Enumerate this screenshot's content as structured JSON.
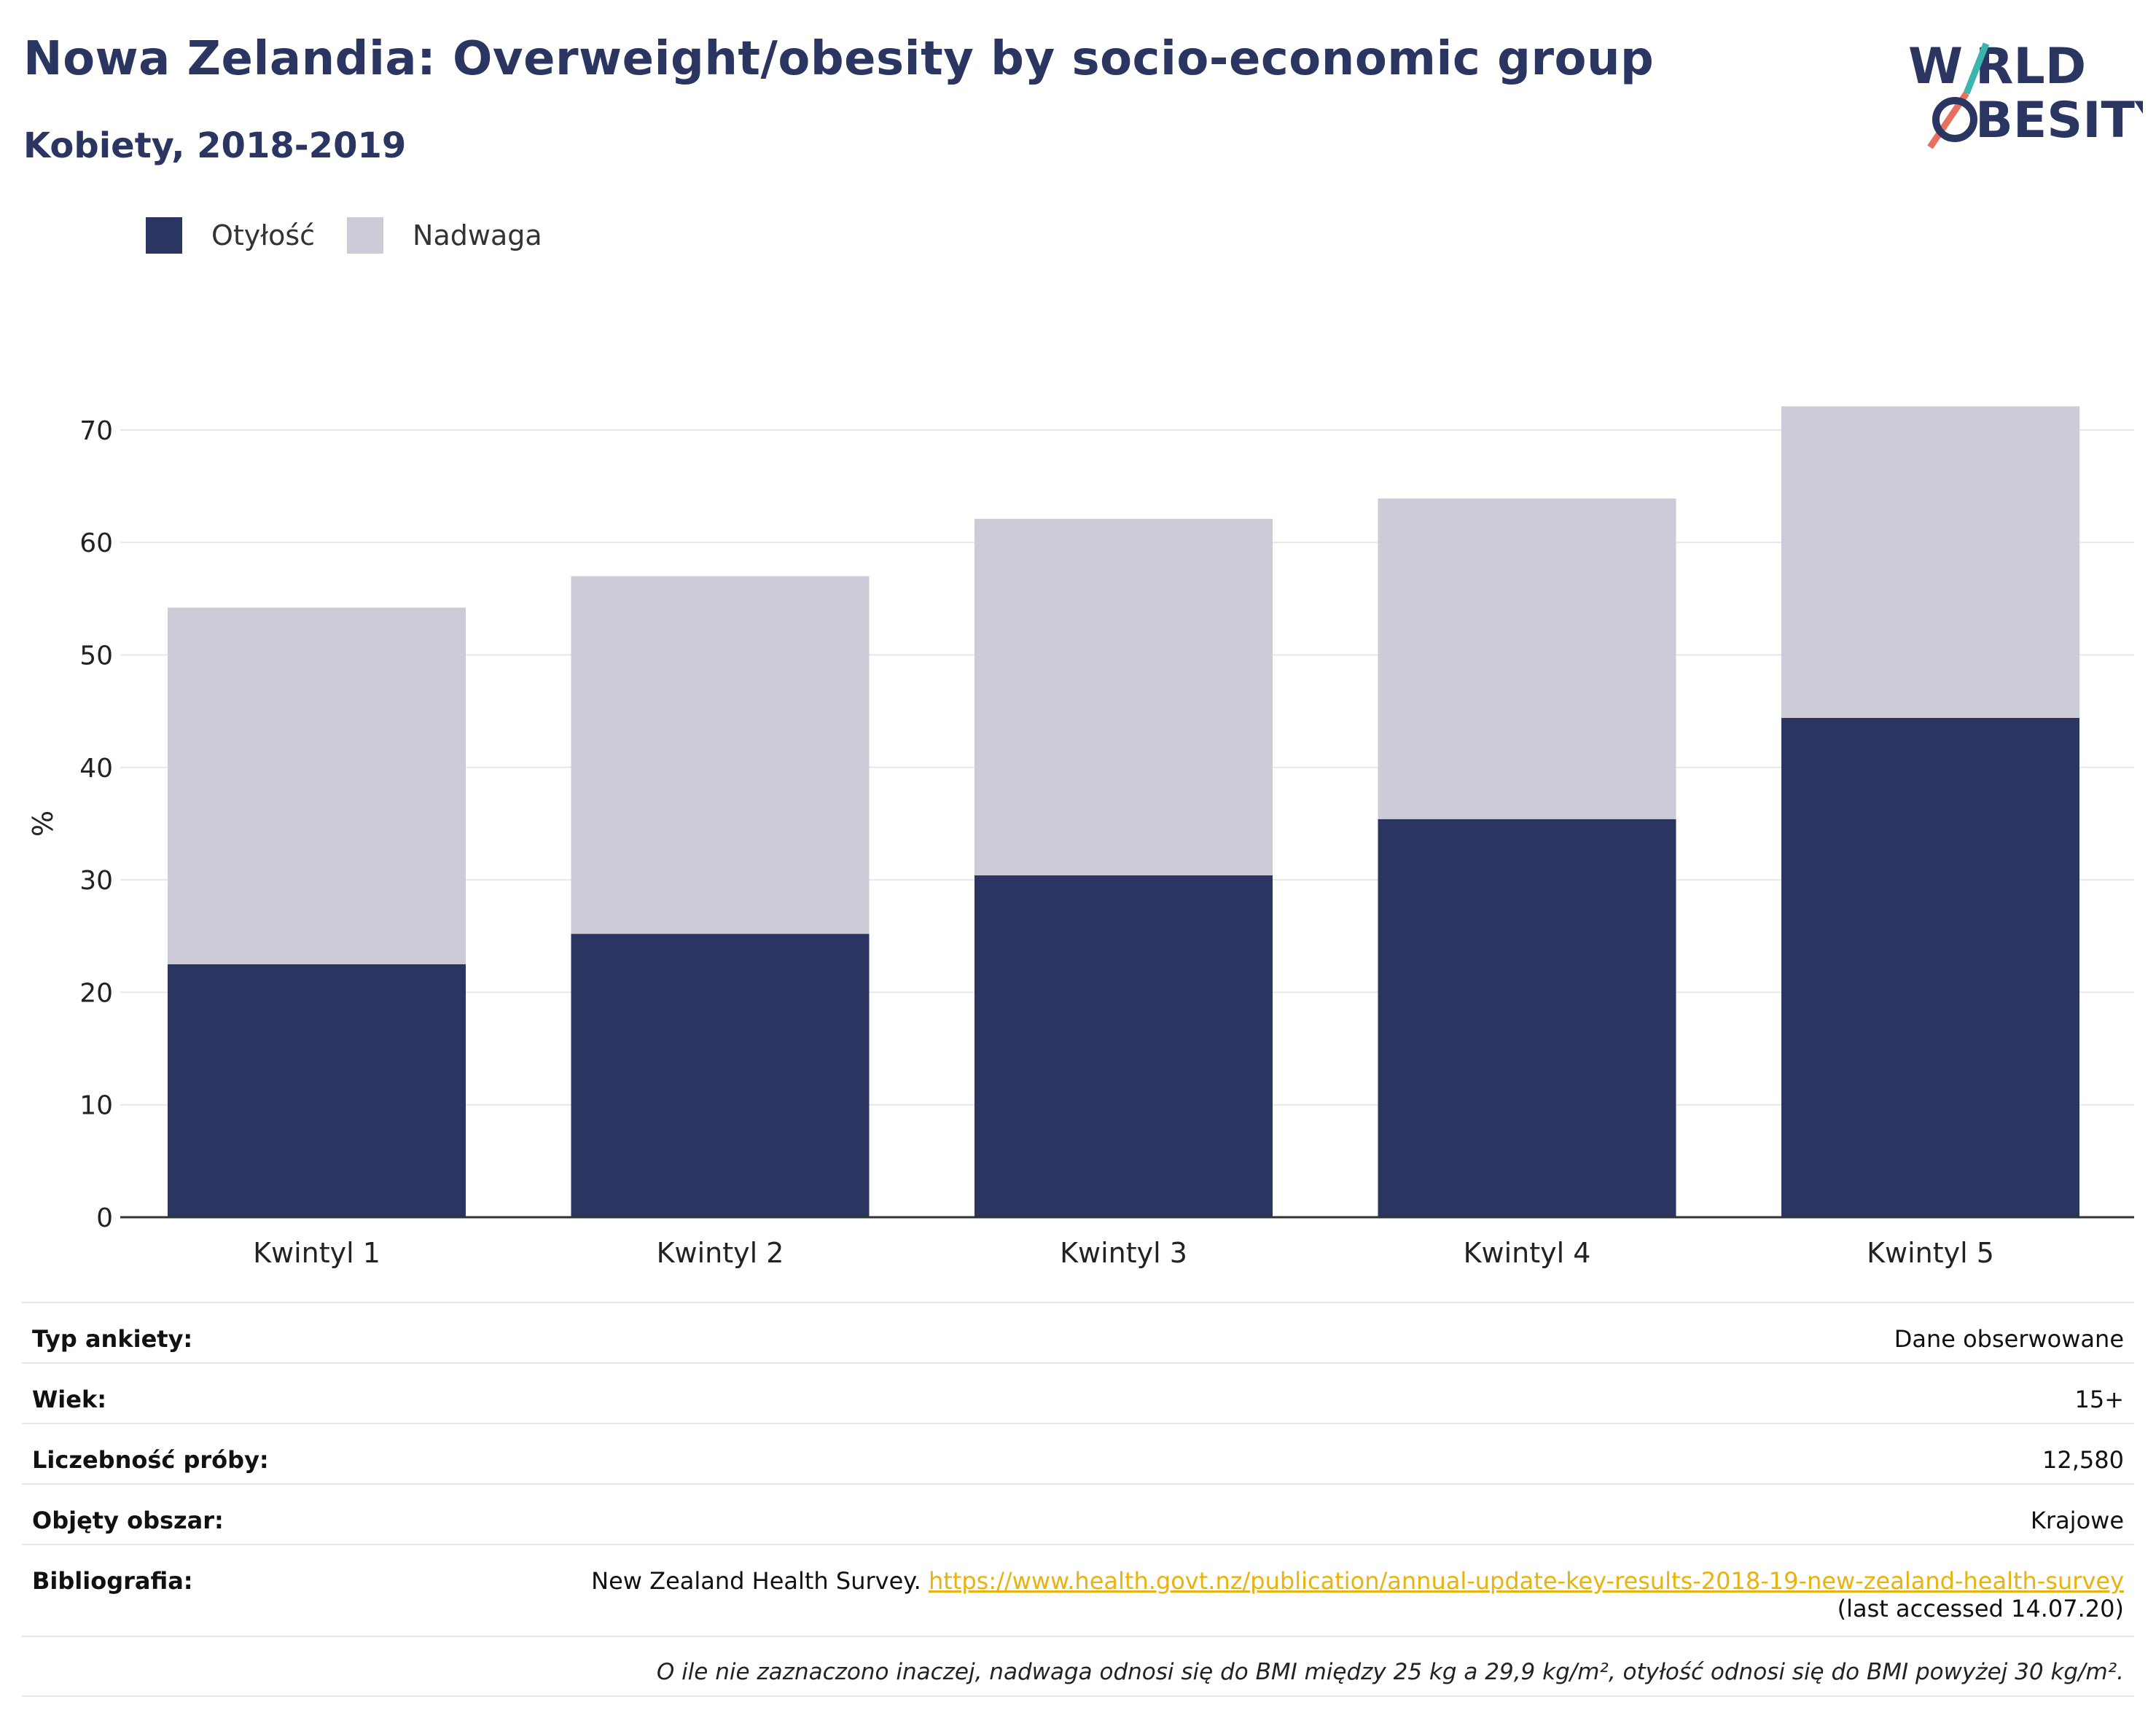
{
  "title": "Nowa Zelandia: Overweight/obesity by socio-economic group",
  "subtitle": "Kobiety, 2018-2019",
  "logo": {
    "line1": "WORLD",
    "line2": "OBESITY",
    "line1_a": "W",
    "line1_b": "RLD",
    "line2_b": "BESITY"
  },
  "legend": [
    {
      "label": "Otyłość",
      "color": "#2a3561"
    },
    {
      "label": "Nadwaga",
      "color": "#cbccd8"
    }
  ],
  "chart_data": {
    "type": "bar",
    "stacked": true,
    "categories": [
      "Kwintyl 1",
      "Kwintyl 2",
      "Kwintyl 3",
      "Kwintyl 4",
      "Kwintyl 5"
    ],
    "series": [
      {
        "name": "Otyłość",
        "color": "#2a3561",
        "values": [
          22.5,
          25.2,
          30.4,
          35.4,
          44.4
        ]
      },
      {
        "name": "Nadwaga",
        "color": "#cbccd8",
        "values": [
          31.7,
          31.8,
          31.7,
          28.5,
          27.7
        ]
      }
    ],
    "ylabel": "%",
    "ylim": [
      0,
      75
    ],
    "yticks": [
      0,
      10,
      20,
      30,
      40,
      50,
      60,
      70
    ],
    "grid": true,
    "legend_position": "top-left"
  },
  "table": [
    {
      "key": "Typ ankiety:",
      "value": "Dane obserwowane"
    },
    {
      "key": "Wiek:",
      "value": "15+"
    },
    {
      "key": "Liczebność próby:",
      "value": "12,580"
    },
    {
      "key": "Objęty obszar:",
      "value": "Krajowe"
    }
  ],
  "bibliography": {
    "key": "Bibliografia:",
    "source": "New Zealand Health Survey.",
    "link": "https://www.health.govt.nz/publication/annual-update-key-results-2018-19-new-zealand-health-survey",
    "accessed": "(last accessed 14.07.20)"
  },
  "note": "O ile nie zaznaczono inaczej, nadwaga odnosi się do BMI między 25 kg a 29,9 kg/m², otyłość odnosi się do BMI powyżej 30 kg/m²."
}
